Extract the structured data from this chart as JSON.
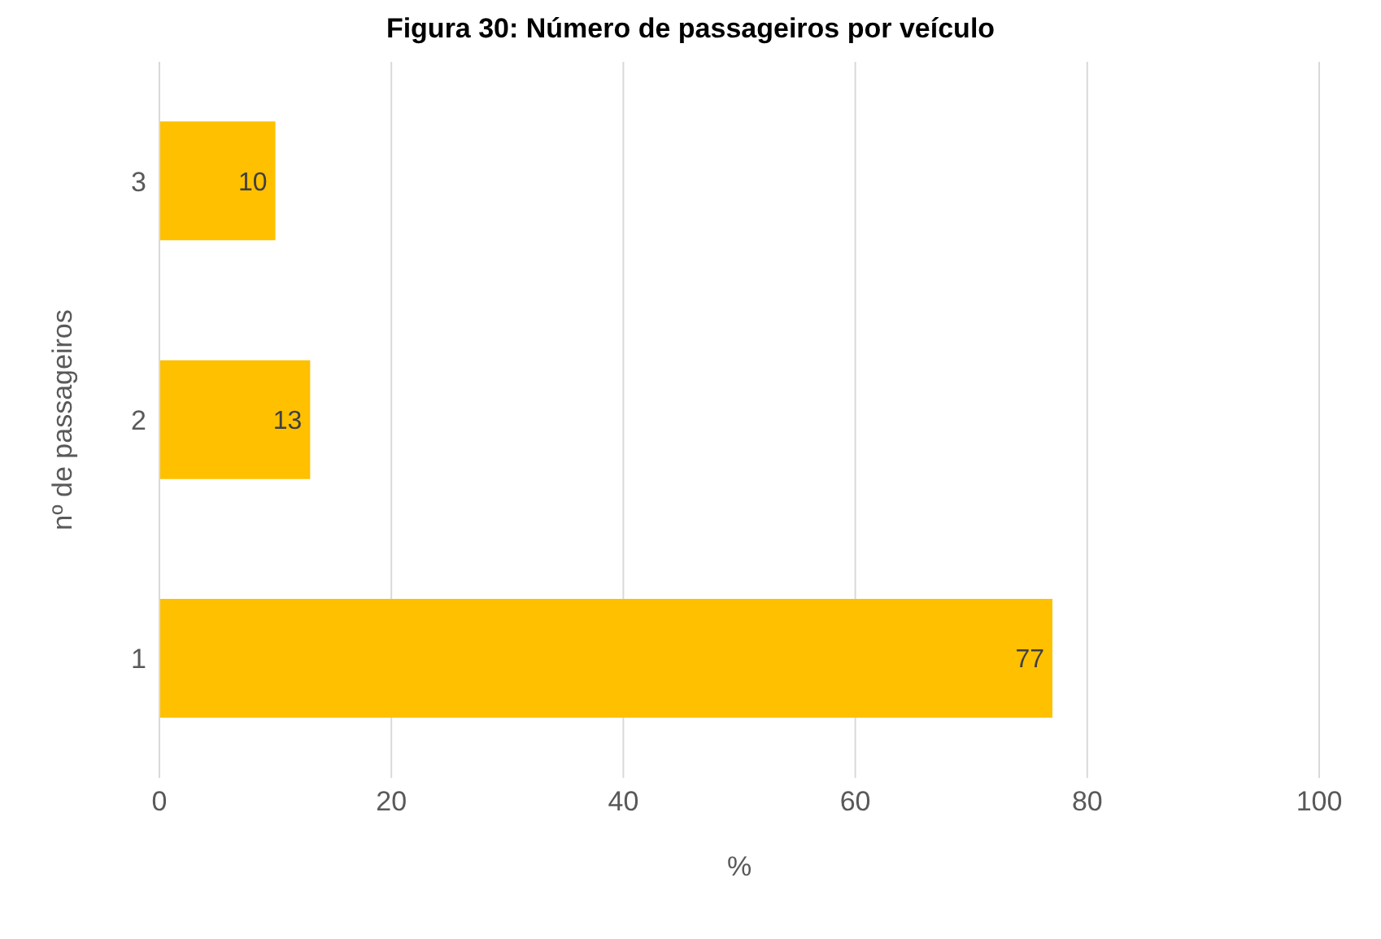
{
  "chart_data": {
    "type": "bar",
    "orientation": "horizontal",
    "title": "Figura 30: Número de passageiros por veículo",
    "xlabel": "%",
    "ylabel": "nº de passageiros",
    "categories": [
      "3",
      "2",
      "1"
    ],
    "values": [
      10,
      13,
      77
    ],
    "color": "#ffc000",
    "xlim": [
      0,
      100
    ],
    "xticks": [
      0,
      20,
      40,
      60,
      80,
      100
    ],
    "grid": "x",
    "data_labels": true
  }
}
